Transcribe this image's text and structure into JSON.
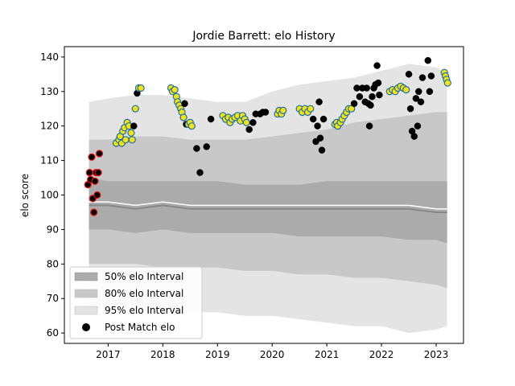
{
  "chart_data": {
    "type": "scatter",
    "title": "Jordie Barrett: elo History",
    "xlabel": "",
    "ylabel": "elo score",
    "xlim": [
      2016.2,
      2023.5
    ],
    "ylim": [
      57,
      143
    ],
    "x_ticks": [
      2017,
      2018,
      2019,
      2020,
      2021,
      2022,
      2023
    ],
    "x_tick_labels": [
      "2017",
      "2018",
      "2019",
      "2020",
      "2021",
      "2022",
      "2023"
    ],
    "y_ticks": [
      60,
      70,
      80,
      90,
      100,
      110,
      120,
      130,
      140
    ],
    "y_tick_labels": [
      "60",
      "70",
      "80",
      "90",
      "100",
      "110",
      "120",
      "130",
      "140"
    ],
    "legend": {
      "position": "lower-left",
      "entries": [
        "50% elo Interval",
        "80% elo Interval",
        "95% elo Interval",
        "Post Match elo"
      ]
    },
    "colors": {
      "band_50": "#ababab",
      "band_80": "#c8c8c8",
      "band_95": "#e4e4e4",
      "median_line": "#888888",
      "mean_line": "#ffffff",
      "point_black": "#000000",
      "point_red": "#dd1111",
      "point_yellow": "#f2e21b",
      "point_edge_yellow": "#1f6fa3"
    },
    "intervals": {
      "x": [
        2016.65,
        2017.0,
        2017.5,
        2018.0,
        2018.5,
        2019.0,
        2019.5,
        2020.0,
        2020.5,
        2021.0,
        2021.5,
        2022.0,
        2022.5,
        2023.0,
        2023.2
      ],
      "p95_upper": [
        127,
        128,
        129,
        129,
        128,
        127,
        127,
        130,
        132,
        133,
        134,
        136,
        138,
        137,
        135
      ],
      "p80_upper": [
        116,
        116,
        117,
        117,
        116,
        116,
        116,
        117,
        118,
        119,
        121,
        122,
        123,
        124,
        124
      ],
      "p50_upper": [
        105,
        104,
        104,
        104,
        104,
        104,
        103,
        103,
        103,
        104,
        104,
        104,
        104,
        104,
        104
      ],
      "p50_lower": [
        90,
        90,
        89,
        90,
        89,
        89,
        89,
        89,
        88,
        88,
        88,
        88,
        87,
        87,
        86
      ],
      "p80_lower": [
        80,
        80,
        80,
        79,
        79,
        79,
        78,
        78,
        77,
        77,
        76,
        76,
        75,
        74,
        73
      ],
      "p95_lower": [
        67,
        67,
        66,
        66,
        66,
        66,
        65,
        65,
        64,
        63,
        62,
        62,
        60,
        61,
        62
      ],
      "median": [
        97,
        97,
        96,
        97,
        96,
        96,
        96,
        96,
        96,
        96,
        96,
        96,
        96,
        95,
        95
      ],
      "mean": [
        98,
        98,
        97,
        98,
        97,
        97,
        97,
        97,
        97,
        97,
        97,
        97,
        97,
        96,
        96
      ]
    },
    "series": [
      {
        "name": "Post Match elo",
        "points": [
          {
            "x": 2016.63,
            "y": 103,
            "c": "red"
          },
          {
            "x": 2016.66,
            "y": 106.5,
            "c": "red"
          },
          {
            "x": 2016.68,
            "y": 104.5,
            "c": "red"
          },
          {
            "x": 2016.7,
            "y": 111,
            "c": "red"
          },
          {
            "x": 2016.72,
            "y": 99,
            "c": "red"
          },
          {
            "x": 2016.74,
            "y": 95,
            "c": "red"
          },
          {
            "x": 2016.76,
            "y": 104,
            "c": "red"
          },
          {
            "x": 2016.78,
            "y": 106.5,
            "c": "red"
          },
          {
            "x": 2016.8,
            "y": 100,
            "c": "red"
          },
          {
            "x": 2016.82,
            "y": 106.5,
            "c": "red"
          },
          {
            "x": 2016.84,
            "y": 112,
            "c": "red"
          },
          {
            "x": 2017.15,
            "y": 115,
            "c": "yellow"
          },
          {
            "x": 2017.2,
            "y": 116,
            "c": "yellow"
          },
          {
            "x": 2017.22,
            "y": 117,
            "c": "yellow"
          },
          {
            "x": 2017.25,
            "y": 115,
            "c": "yellow"
          },
          {
            "x": 2017.27,
            "y": 118.5,
            "c": "yellow"
          },
          {
            "x": 2017.3,
            "y": 119.5,
            "c": "yellow"
          },
          {
            "x": 2017.32,
            "y": 116,
            "c": "yellow"
          },
          {
            "x": 2017.35,
            "y": 121,
            "c": "yellow"
          },
          {
            "x": 2017.38,
            "y": 120,
            "c": "yellow"
          },
          {
            "x": 2017.42,
            "y": 118,
            "c": "yellow"
          },
          {
            "x": 2017.44,
            "y": 116,
            "c": "yellow"
          },
          {
            "x": 2017.47,
            "y": 120,
            "c": "black"
          },
          {
            "x": 2017.5,
            "y": 125,
            "c": "yellow"
          },
          {
            "x": 2017.53,
            "y": 129.5,
            "c": "black"
          },
          {
            "x": 2017.56,
            "y": 131,
            "c": "yellow"
          },
          {
            "x": 2017.6,
            "y": 131,
            "c": "yellow"
          },
          {
            "x": 2018.15,
            "y": 131,
            "c": "yellow"
          },
          {
            "x": 2018.18,
            "y": 130,
            "c": "yellow"
          },
          {
            "x": 2018.22,
            "y": 130.5,
            "c": "yellow"
          },
          {
            "x": 2018.25,
            "y": 128.5,
            "c": "yellow"
          },
          {
            "x": 2018.27,
            "y": 127,
            "c": "yellow"
          },
          {
            "x": 2018.3,
            "y": 126,
            "c": "yellow"
          },
          {
            "x": 2018.33,
            "y": 125,
            "c": "yellow"
          },
          {
            "x": 2018.35,
            "y": 124,
            "c": "yellow"
          },
          {
            "x": 2018.38,
            "y": 122.5,
            "c": "yellow"
          },
          {
            "x": 2018.4,
            "y": 126.5,
            "c": "black"
          },
          {
            "x": 2018.43,
            "y": 120.5,
            "c": "black"
          },
          {
            "x": 2018.47,
            "y": 120.5,
            "c": "yellow"
          },
          {
            "x": 2018.5,
            "y": 121,
            "c": "yellow"
          },
          {
            "x": 2018.53,
            "y": 120,
            "c": "yellow"
          },
          {
            "x": 2018.62,
            "y": 113.5,
            "c": "black"
          },
          {
            "x": 2018.68,
            "y": 106.5,
            "c": "black"
          },
          {
            "x": 2018.8,
            "y": 114,
            "c": "black"
          },
          {
            "x": 2018.88,
            "y": 122,
            "c": "black"
          },
          {
            "x": 2019.1,
            "y": 123,
            "c": "yellow"
          },
          {
            "x": 2019.15,
            "y": 122,
            "c": "yellow"
          },
          {
            "x": 2019.2,
            "y": 122.5,
            "c": "yellow"
          },
          {
            "x": 2019.23,
            "y": 121,
            "c": "yellow"
          },
          {
            "x": 2019.27,
            "y": 122,
            "c": "yellow"
          },
          {
            "x": 2019.32,
            "y": 122.5,
            "c": "yellow"
          },
          {
            "x": 2019.37,
            "y": 123,
            "c": "yellow"
          },
          {
            "x": 2019.42,
            "y": 121.5,
            "c": "yellow"
          },
          {
            "x": 2019.46,
            "y": 123,
            "c": "yellow"
          },
          {
            "x": 2019.5,
            "y": 122,
            "c": "yellow"
          },
          {
            "x": 2019.53,
            "y": 121,
            "c": "yellow"
          },
          {
            "x": 2019.58,
            "y": 119,
            "c": "black"
          },
          {
            "x": 2019.65,
            "y": 121,
            "c": "black"
          },
          {
            "x": 2019.7,
            "y": 123.5,
            "c": "black"
          },
          {
            "x": 2019.78,
            "y": 123.5,
            "c": "black"
          },
          {
            "x": 2019.83,
            "y": 124,
            "c": "black"
          },
          {
            "x": 2019.88,
            "y": 124,
            "c": "black"
          },
          {
            "x": 2020.1,
            "y": 123.5,
            "c": "yellow"
          },
          {
            "x": 2020.13,
            "y": 124.5,
            "c": "yellow"
          },
          {
            "x": 2020.17,
            "y": 123.5,
            "c": "yellow"
          },
          {
            "x": 2020.2,
            "y": 124.5,
            "c": "yellow"
          },
          {
            "x": 2020.5,
            "y": 125,
            "c": "yellow"
          },
          {
            "x": 2020.55,
            "y": 124,
            "c": "yellow"
          },
          {
            "x": 2020.6,
            "y": 125,
            "c": "yellow"
          },
          {
            "x": 2020.65,
            "y": 124,
            "c": "yellow"
          },
          {
            "x": 2020.7,
            "y": 125,
            "c": "yellow"
          },
          {
            "x": 2020.75,
            "y": 122,
            "c": "black"
          },
          {
            "x": 2020.8,
            "y": 115.5,
            "c": "black"
          },
          {
            "x": 2020.83,
            "y": 120,
            "c": "black"
          },
          {
            "x": 2020.86,
            "y": 127,
            "c": "black"
          },
          {
            "x": 2020.88,
            "y": 116.5,
            "c": "black"
          },
          {
            "x": 2020.91,
            "y": 113,
            "c": "black"
          },
          {
            "x": 2020.94,
            "y": 122,
            "c": "black"
          },
          {
            "x": 2021.15,
            "y": 120.5,
            "c": "yellow"
          },
          {
            "x": 2021.18,
            "y": 121,
            "c": "yellow"
          },
          {
            "x": 2021.2,
            "y": 120,
            "c": "yellow"
          },
          {
            "x": 2021.25,
            "y": 121,
            "c": "yellow"
          },
          {
            "x": 2021.28,
            "y": 122,
            "c": "yellow"
          },
          {
            "x": 2021.32,
            "y": 123,
            "c": "yellow"
          },
          {
            "x": 2021.36,
            "y": 124,
            "c": "yellow"
          },
          {
            "x": 2021.4,
            "y": 125,
            "c": "yellow"
          },
          {
            "x": 2021.45,
            "y": 125,
            "c": "yellow"
          },
          {
            "x": 2021.5,
            "y": 126.5,
            "c": "black"
          },
          {
            "x": 2021.55,
            "y": 131,
            "c": "black"
          },
          {
            "x": 2021.6,
            "y": 128.5,
            "c": "black"
          },
          {
            "x": 2021.65,
            "y": 131,
            "c": "black"
          },
          {
            "x": 2021.7,
            "y": 127,
            "c": "black"
          },
          {
            "x": 2021.73,
            "y": 131,
            "c": "black"
          },
          {
            "x": 2021.76,
            "y": 126.5,
            "c": "black"
          },
          {
            "x": 2021.78,
            "y": 120,
            "c": "black"
          },
          {
            "x": 2021.8,
            "y": 126,
            "c": "black"
          },
          {
            "x": 2021.83,
            "y": 128.5,
            "c": "black"
          },
          {
            "x": 2021.86,
            "y": 131,
            "c": "black"
          },
          {
            "x": 2021.89,
            "y": 132,
            "c": "black"
          },
          {
            "x": 2021.92,
            "y": 137.5,
            "c": "black"
          },
          {
            "x": 2021.94,
            "y": 132.5,
            "c": "black"
          },
          {
            "x": 2021.96,
            "y": 129,
            "c": "black"
          },
          {
            "x": 2022.15,
            "y": 130,
            "c": "yellow"
          },
          {
            "x": 2022.2,
            "y": 130.5,
            "c": "yellow"
          },
          {
            "x": 2022.25,
            "y": 130,
            "c": "yellow"
          },
          {
            "x": 2022.3,
            "y": 131,
            "c": "yellow"
          },
          {
            "x": 2022.35,
            "y": 131.5,
            "c": "yellow"
          },
          {
            "x": 2022.4,
            "y": 131,
            "c": "yellow"
          },
          {
            "x": 2022.45,
            "y": 130.5,
            "c": "yellow"
          },
          {
            "x": 2022.5,
            "y": 135,
            "c": "black"
          },
          {
            "x": 2022.53,
            "y": 125,
            "c": "black"
          },
          {
            "x": 2022.56,
            "y": 118.5,
            "c": "black"
          },
          {
            "x": 2022.6,
            "y": 117,
            "c": "black"
          },
          {
            "x": 2022.63,
            "y": 128,
            "c": "black"
          },
          {
            "x": 2022.66,
            "y": 120,
            "c": "black"
          },
          {
            "x": 2022.68,
            "y": 130,
            "c": "black"
          },
          {
            "x": 2022.72,
            "y": 127,
            "c": "black"
          },
          {
            "x": 2022.75,
            "y": 134,
            "c": "black"
          },
          {
            "x": 2022.85,
            "y": 139,
            "c": "black"
          },
          {
            "x": 2022.88,
            "y": 130,
            "c": "black"
          },
          {
            "x": 2022.91,
            "y": 134.5,
            "c": "black"
          },
          {
            "x": 2023.15,
            "y": 135.5,
            "c": "yellow"
          },
          {
            "x": 2023.17,
            "y": 134.5,
            "c": "yellow"
          },
          {
            "x": 2023.19,
            "y": 133.5,
            "c": "yellow"
          },
          {
            "x": 2023.21,
            "y": 132.5,
            "c": "yellow"
          }
        ]
      }
    ]
  }
}
